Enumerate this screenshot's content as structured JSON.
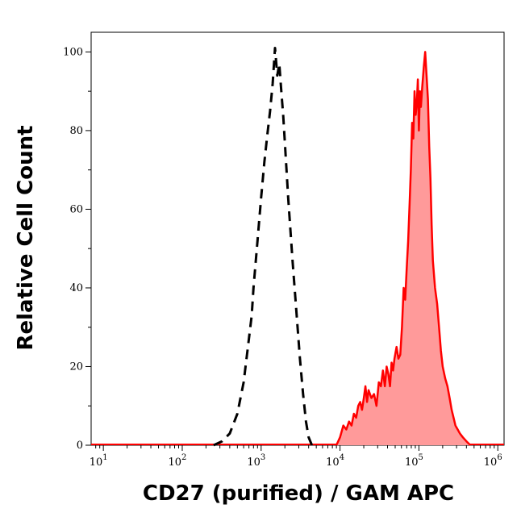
{
  "chart_data": {
    "type": "histogram-overlay",
    "xlabel": "CD27 (purified) / GAM APC",
    "ylabel": "Relative Cell Count",
    "x_scale": "log10",
    "xlim": [
      7,
      1200000
    ],
    "ylim": [
      0,
      105
    ],
    "x_ticks": [
      {
        "value": 10,
        "base": "10",
        "exp": "1"
      },
      {
        "value": 100,
        "base": "10",
        "exp": "2"
      },
      {
        "value": 1000,
        "base": "10",
        "exp": "3"
      },
      {
        "value": 10000,
        "base": "10",
        "exp": "4"
      },
      {
        "value": 100000,
        "base": "10",
        "exp": "5"
      },
      {
        "value": 1000000,
        "base": "10",
        "exp": "6"
      }
    ],
    "y_ticks": [
      0,
      20,
      40,
      60,
      80,
      100
    ],
    "series": [
      {
        "style": "dashed-outline",
        "stroke": "#000000",
        "points": [
          [
            250,
            0
          ],
          [
            320,
            1
          ],
          [
            400,
            3
          ],
          [
            500,
            8
          ],
          [
            600,
            16
          ],
          [
            700,
            27
          ],
          [
            760,
            33
          ],
          [
            800,
            40
          ],
          [
            900,
            52
          ],
          [
            1000,
            63
          ],
          [
            1100,
            72
          ],
          [
            1200,
            79
          ],
          [
            1300,
            85
          ],
          [
            1400,
            92
          ],
          [
            1500,
            101
          ],
          [
            1600,
            94
          ],
          [
            1700,
            97
          ],
          [
            1800,
            90
          ],
          [
            1900,
            84
          ],
          [
            2000,
            77
          ],
          [
            2200,
            63
          ],
          [
            2500,
            47
          ],
          [
            2800,
            34
          ],
          [
            3100,
            22
          ],
          [
            3400,
            13
          ],
          [
            3700,
            6
          ],
          [
            4000,
            2
          ],
          [
            4400,
            0
          ]
        ]
      },
      {
        "style": "filled",
        "stroke": "#ff0000",
        "fill": "#ff9a9a",
        "points": [
          [
            9000,
            0
          ],
          [
            10000,
            2
          ],
          [
            11000,
            5
          ],
          [
            12000,
            4
          ],
          [
            13000,
            6
          ],
          [
            14000,
            5
          ],
          [
            15000,
            8
          ],
          [
            16000,
            7
          ],
          [
            17000,
            10
          ],
          [
            18000,
            11
          ],
          [
            19000,
            9
          ],
          [
            20000,
            12
          ],
          [
            21000,
            15
          ],
          [
            22000,
            11
          ],
          [
            23000,
            14
          ],
          [
            25000,
            12
          ],
          [
            27000,
            13
          ],
          [
            29000,
            10
          ],
          [
            31000,
            16
          ],
          [
            33000,
            15
          ],
          [
            35000,
            19
          ],
          [
            37000,
            15
          ],
          [
            39000,
            20
          ],
          [
            41000,
            18
          ],
          [
            43000,
            15
          ],
          [
            45000,
            21
          ],
          [
            47000,
            19
          ],
          [
            49000,
            22
          ],
          [
            52000,
            25
          ],
          [
            55000,
            22
          ],
          [
            58000,
            23
          ],
          [
            61000,
            30
          ],
          [
            64000,
            40
          ],
          [
            67000,
            37
          ],
          [
            70000,
            45
          ],
          [
            73000,
            52
          ],
          [
            76000,
            61
          ],
          [
            79000,
            70
          ],
          [
            82000,
            82
          ],
          [
            85000,
            78
          ],
          [
            88000,
            90
          ],
          [
            91000,
            84
          ],
          [
            94000,
            87
          ],
          [
            97000,
            93
          ],
          [
            100000,
            80
          ],
          [
            103000,
            90
          ],
          [
            106000,
            86
          ],
          [
            110000,
            91
          ],
          [
            115000,
            96
          ],
          [
            120000,
            100
          ],
          [
            125000,
            94
          ],
          [
            130000,
            88
          ],
          [
            135000,
            76
          ],
          [
            140000,
            68
          ],
          [
            145000,
            56
          ],
          [
            150000,
            47
          ],
          [
            160000,
            40
          ],
          [
            170000,
            36
          ],
          [
            180000,
            30
          ],
          [
            190000,
            24
          ],
          [
            200000,
            20
          ],
          [
            215000,
            17
          ],
          [
            230000,
            15
          ],
          [
            245000,
            12
          ],
          [
            260000,
            9
          ],
          [
            275000,
            7
          ],
          [
            290000,
            5
          ],
          [
            310000,
            4
          ],
          [
            330000,
            3
          ],
          [
            360000,
            2
          ],
          [
            400000,
            1
          ],
          [
            450000,
            0
          ]
        ]
      }
    ]
  }
}
